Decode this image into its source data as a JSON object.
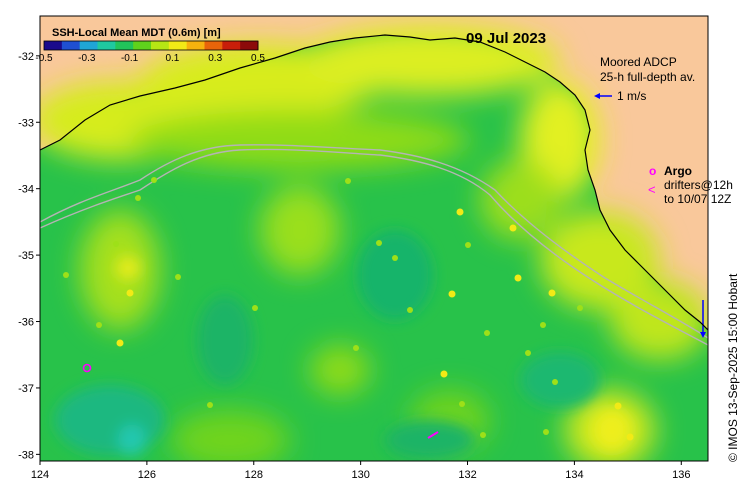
{
  "map": {
    "date": "09 Jul 2023",
    "colorbar": {
      "title": "SSH-Local Mean MDT (0.6m) [m]",
      "ticks": [
        "-0.5",
        "-0.3",
        "-0.1",
        "0.1",
        "0.3",
        "0.5"
      ],
      "range": [
        -0.5,
        0.5
      ],
      "colors": [
        "#1a0a8c",
        "#1f4fd1",
        "#1fa5d6",
        "#1fc9a0",
        "#22c45a",
        "#5fd21c",
        "#b6e614",
        "#f2ea16",
        "#f6b20e",
        "#e8640a",
        "#c81e0a",
        "#8c0a0a"
      ]
    },
    "x_ticks": [
      "124",
      "126",
      "128",
      "130",
      "132",
      "134",
      "136"
    ],
    "y_ticks": [
      "-32",
      "-33",
      "-34",
      "-35",
      "-36",
      "-37",
      "-38"
    ],
    "x_range": [
      124,
      136.5
    ],
    "y_range": [
      -38.1,
      -31.4
    ],
    "legend": {
      "adcp_title": "Moored ADCP",
      "adcp_subtitle": "25-h full-depth av.",
      "adcp_scale": "1 m/s",
      "argo_symbol": "o",
      "argo_label": "Argo",
      "drifter_symbol": "<",
      "drifter_line1": "drifters@12h",
      "drifter_line2": "to 10/07 12Z"
    },
    "credit": "© IMOS 13-Sep-2025 15:00 Hobart",
    "colors": {
      "land": "#f9c89b",
      "argo": "#ff00ff",
      "adcp": "#0000ff",
      "contour": "#b4b4b4"
    }
  }
}
